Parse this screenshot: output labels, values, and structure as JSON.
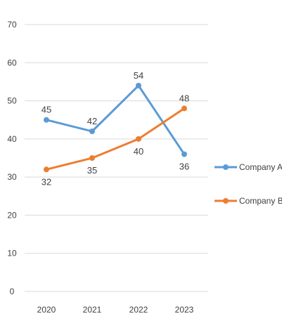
{
  "chart_data": {
    "type": "line",
    "title": "",
    "xlabel": "",
    "ylabel": "",
    "categories": [
      "2020",
      "2021",
      "2022",
      "2023"
    ],
    "ylim": [
      0,
      70
    ],
    "yticks": [
      0,
      10,
      20,
      30,
      40,
      50,
      60,
      70
    ],
    "grid": true,
    "legend_position": "right",
    "series": [
      {
        "name": "Company A",
        "values": [
          45,
          42,
          54,
          36
        ],
        "color": "#5b9bd5",
        "labels": [
          "45",
          "42",
          "54",
          "36"
        ],
        "label_placement": [
          "above",
          "above",
          "above",
          "below"
        ]
      },
      {
        "name": "Company B",
        "values": [
          32,
          35,
          40,
          48
        ],
        "color": "#ed7d31",
        "labels": [
          "32",
          "35",
          "40",
          "48"
        ],
        "label_placement": [
          "below",
          "below",
          "below",
          "above"
        ]
      }
    ]
  }
}
